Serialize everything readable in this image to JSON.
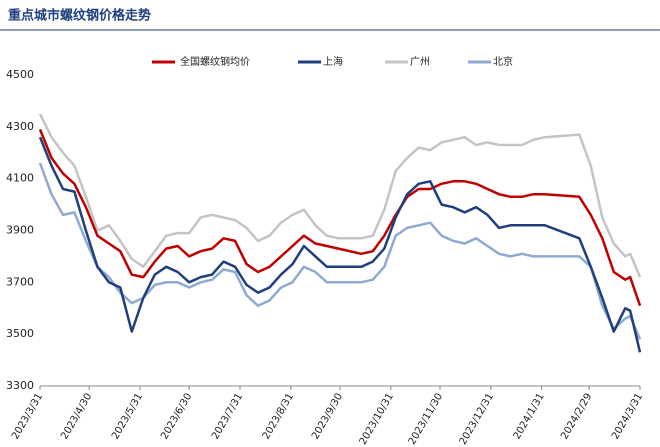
{
  "chart_data": {
    "type": "line",
    "title": "重点城市螺纹钢价格走势",
    "x": [
      "2023/3/31",
      "2023/4/7",
      "2023/4/14",
      "2023/4/21",
      "2023/4/28",
      "2023/5/5",
      "2023/5/12",
      "2023/5/19",
      "2023/5/26",
      "2023/6/2",
      "2023/6/9",
      "2023/6/16",
      "2023/6/23",
      "2023/6/30",
      "2023/7/7",
      "2023/7/14",
      "2023/7/21",
      "2023/7/28",
      "2023/8/4",
      "2023/8/11",
      "2023/8/18",
      "2023/8/25",
      "2023/9/1",
      "2023/9/8",
      "2023/9/15",
      "2023/9/22",
      "2023/9/29",
      "2023/10/13",
      "2023/10/20",
      "2023/10/27",
      "2023/11/3",
      "2023/11/10",
      "2023/11/17",
      "2023/11/24",
      "2023/12/1",
      "2023/12/8",
      "2023/12/15",
      "2023/12/22",
      "2023/12/29",
      "2024/1/5",
      "2024/1/12",
      "2024/1/19",
      "2024/1/26",
      "2024/2/2",
      "2024/2/23",
      "2024/3/1",
      "2024/3/8",
      "2024/3/15",
      "2024/3/22",
      "2024/3/25",
      "2024/3/31"
    ],
    "series": [
      {
        "name": "全国螺纹钢均价",
        "color": "#c00000",
        "values": [
          4290,
          4180,
          4120,
          4080,
          3990,
          3880,
          3850,
          3820,
          3730,
          3720,
          3780,
          3830,
          3840,
          3800,
          3820,
          3830,
          3870,
          3860,
          3770,
          3740,
          3760,
          3800,
          3840,
          3880,
          3850,
          3840,
          3830,
          3810,
          3820,
          3880,
          3960,
          4030,
          4060,
          4060,
          4080,
          4090,
          4090,
          4080,
          4060,
          4040,
          4030,
          4030,
          4040,
          4040,
          4030,
          3960,
          3870,
          3740,
          3710,
          3720,
          3610
        ]
      },
      {
        "name": "上海",
        "color": "#1f3f7f",
        "values": [
          4260,
          4150,
          4060,
          4050,
          3900,
          3760,
          3700,
          3680,
          3510,
          3640,
          3730,
          3760,
          3740,
          3700,
          3720,
          3730,
          3780,
          3760,
          3690,
          3660,
          3680,
          3730,
          3770,
          3840,
          3800,
          3760,
          3760,
          3760,
          3780,
          3830,
          3950,
          4040,
          4080,
          4090,
          4000,
          3990,
          3970,
          3990,
          3960,
          3910,
          3920,
          3920,
          3920,
          3920,
          3870,
          3760,
          3640,
          3510,
          3600,
          3590,
          3430
        ]
      },
      {
        "name": "广州",
        "color": "#c4c4c4",
        "values": [
          4350,
          4260,
          4200,
          4150,
          4030,
          3900,
          3920,
          3860,
          3790,
          3760,
          3820,
          3880,
          3890,
          3890,
          3950,
          3960,
          3950,
          3940,
          3910,
          3860,
          3880,
          3930,
          3960,
          3980,
          3920,
          3880,
          3870,
          3870,
          3880,
          3980,
          4130,
          4180,
          4220,
          4210,
          4240,
          4250,
          4260,
          4230,
          4240,
          4230,
          4230,
          4230,
          4250,
          4260,
          4270,
          4150,
          3950,
          3850,
          3800,
          3810,
          3720
        ]
      },
      {
        "name": "北京",
        "color": "#8faad0",
        "values": [
          4160,
          4040,
          3960,
          3970,
          3860,
          3760,
          3720,
          3660,
          3620,
          3640,
          3690,
          3700,
          3700,
          3680,
          3700,
          3710,
          3750,
          3740,
          3650,
          3610,
          3630,
          3680,
          3700,
          3760,
          3740,
          3700,
          3700,
          3700,
          3710,
          3760,
          3880,
          3910,
          3920,
          3930,
          3880,
          3860,
          3850,
          3870,
          3840,
          3810,
          3800,
          3810,
          3800,
          3800,
          3800,
          3760,
          3610,
          3520,
          3560,
          3570,
          3480
        ]
      }
    ],
    "xlim": [
      "2023/3/31",
      "2024/3/31"
    ],
    "xticks": [
      "2023/3/31",
      "2023/4/30",
      "2023/5/31",
      "2023/6/30",
      "2023/7/31",
      "2023/8/31",
      "2023/9/30",
      "2023/10/31",
      "2023/11/30",
      "2023/12/31",
      "2024/1/31",
      "2024/2/29",
      "2024/3/31"
    ],
    "ylim": [
      3300,
      4500
    ],
    "yticks": [
      3300,
      3500,
      3700,
      3900,
      4100,
      4300,
      4500
    ],
    "grid": false,
    "legend": "top"
  }
}
